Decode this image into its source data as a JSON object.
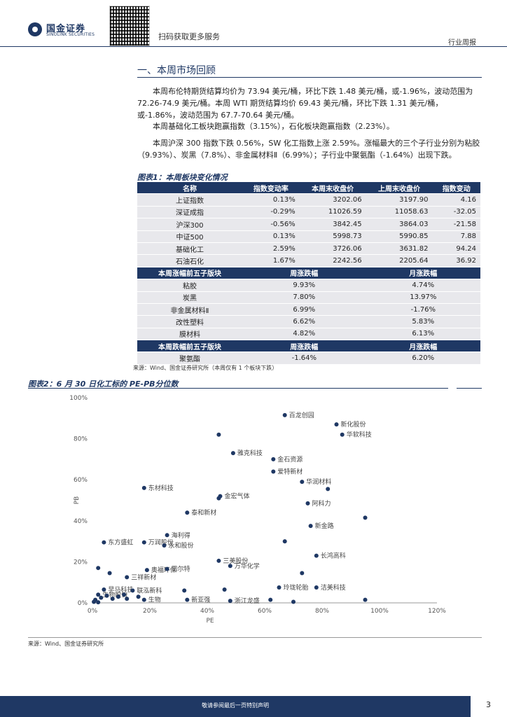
{
  "header": {
    "logo_cn": "国金证券",
    "logo_en": "SINOLINK SECURITIES",
    "qr_text": "扫码获取更多服务",
    "report_type": "行业周报"
  },
  "section": {
    "title": "一、本周市场回顾",
    "paragraphs": [
      "本周布伦特期货结算均价为 73.94 美元/桶，环比下跌 1.48 美元/桶，或-1.96%，波动范围为 72.26-74.9 美元/桶。本周 WTI 期货结算均价 69.43 美元/桶，环比下跌 1.31 美元/桶，或-1.86%，波动范围为 67.7-70.64 美元/桶。",
      "本周基础化工板块跑赢指数（3.15%），石化板块跑赢指数（2.23%）。",
      "本周沪深 300 指数下跌 0.56%，SW 化工指数上涨 2.59%。涨幅最大的三个子行业分别为粘胶（9.93%）、炭黑（7.8%）、非金属材料Ⅱ（6.99%）；子行业中聚氨酯（-1.64%）出现下跌。"
    ]
  },
  "table1": {
    "title": "图表1：本周板块变化情况",
    "header1": [
      "名称",
      "指数变动率",
      "本周末收盘价",
      "上周末收盘价",
      "指数变动"
    ],
    "rows1": [
      [
        "上证指数",
        "0.13%",
        "3202.06",
        "3197.90",
        "4.16"
      ],
      [
        "深证成指",
        "-0.29%",
        "11026.59",
        "11058.63",
        "-32.05"
      ],
      [
        "沪深300",
        "-0.56%",
        "3842.45",
        "3864.03",
        "-21.58"
      ],
      [
        "中证500",
        "0.13%",
        "5998.73",
        "5990.85",
        "7.88"
      ],
      [
        "基础化工",
        "2.59%",
        "3726.06",
        "3631.82",
        "94.24"
      ],
      [
        "石油石化",
        "1.67%",
        "2242.56",
        "2205.64",
        "36.92"
      ]
    ],
    "header2": [
      "本周涨幅前五子版块",
      "周涨跌幅",
      "月涨跌幅"
    ],
    "rows2": [
      [
        "粘胶",
        "9.93%",
        "4.74%"
      ],
      [
        "炭黑",
        "7.80%",
        "13.97%"
      ],
      [
        "非金属材料Ⅱ",
        "6.99%",
        "-1.76%"
      ],
      [
        "改性塑料",
        "6.62%",
        "5.83%"
      ],
      [
        "膜材料",
        "4.82%",
        "6.13%"
      ]
    ],
    "header3": [
      "本周跌幅前五子版块",
      "周涨跌幅",
      "月涨跌幅"
    ],
    "rows3": [
      [
        "聚氨酯",
        "-1.64%",
        "6.20%"
      ]
    ],
    "note": "来源：Wind、国金证券研究所（本周仅有 1 个板块下跌）"
  },
  "figure2": {
    "title": "图表2：6 月 30 日化工标的 PE-PB分位数",
    "source": "来源：Wind、国金证券研究所"
  },
  "chart_data": {
    "type": "scatter",
    "title": "图表2：6 月 30 日化工标的 PE-PB分位数",
    "xlabel": "PE",
    "ylabel": "PB",
    "xlim": [
      0,
      120
    ],
    "ylim": [
      0,
      100
    ],
    "x_ticks": [
      "0%",
      "20%",
      "40%",
      "60%",
      "80%",
      "100%",
      "120%"
    ],
    "y_ticks": [
      "0%",
      "20%",
      "40%",
      "60%",
      "80%",
      "100%"
    ],
    "color": "#1f3864",
    "points": [
      {
        "x": 67,
        "y": 91.5,
        "label": "百龙创园"
      },
      {
        "x": 85,
        "y": 87,
        "label": "新化股份"
      },
      {
        "x": 87,
        "y": 82,
        "label": "华软科技"
      },
      {
        "x": 44,
        "y": 82,
        "label": ""
      },
      {
        "x": 49,
        "y": 73,
        "label": "雅克科技"
      },
      {
        "x": 63,
        "y": 70,
        "label": "金石资源"
      },
      {
        "x": 63,
        "y": 64,
        "label": "爱特新材"
      },
      {
        "x": 73,
        "y": 59,
        "label": "华润材料"
      },
      {
        "x": 82,
        "y": 55.5,
        "label": ""
      },
      {
        "x": 18,
        "y": 56,
        "label": "东材科技"
      },
      {
        "x": 44.5,
        "y": 52,
        "label": "金宏气体"
      },
      {
        "x": 44,
        "y": 51,
        "label": ""
      },
      {
        "x": 75,
        "y": 48.5,
        "label": "阿科力"
      },
      {
        "x": 33,
        "y": 44,
        "label": "泰和新材"
      },
      {
        "x": 95,
        "y": 41.5,
        "label": ""
      },
      {
        "x": 76,
        "y": 37.5,
        "label": "新金路"
      },
      {
        "x": 26,
        "y": 33,
        "label": "海利得"
      },
      {
        "x": 4,
        "y": 29.5,
        "label": "东方盛虹"
      },
      {
        "x": 18,
        "y": 29.5,
        "label": "万润股份"
      },
      {
        "x": 25,
        "y": 28,
        "label": "永和股份"
      },
      {
        "x": 67,
        "y": 30,
        "label": ""
      },
      {
        "x": 78,
        "y": 23,
        "label": "长鸿高科"
      },
      {
        "x": 44,
        "y": 20.5,
        "label": "三美股份"
      },
      {
        "x": 48,
        "y": 18,
        "label": "万华化学"
      },
      {
        "x": 2,
        "y": 17,
        "label": ""
      },
      {
        "x": 19,
        "y": 16,
        "label": "奥福环保"
      },
      {
        "x": 26,
        "y": 16.5,
        "label": "司尔特"
      },
      {
        "x": 73,
        "y": 14.5,
        "label": ""
      },
      {
        "x": 12,
        "y": 12.5,
        "label": "三祥新材"
      },
      {
        "x": 6,
        "y": 14.5,
        "label": ""
      },
      {
        "x": 65,
        "y": 7.5,
        "label": "玲珑轮胎"
      },
      {
        "x": 78,
        "y": 7.5,
        "label": "洁美科技"
      },
      {
        "x": 4,
        "y": 6.5,
        "label": "早马科技"
      },
      {
        "x": 14,
        "y": 6,
        "label": "联泓新科"
      },
      {
        "x": 32,
        "y": 6,
        "label": ""
      },
      {
        "x": 46,
        "y": 6.5,
        "label": ""
      },
      {
        "x": 2,
        "y": 4,
        "label": "生物股份"
      },
      {
        "x": 16,
        "y": 3,
        "label": ""
      },
      {
        "x": 33,
        "y": 1.5,
        "label": "新亚强"
      },
      {
        "x": 48,
        "y": 1,
        "label": "浙江龙盛"
      },
      {
        "x": 62,
        "y": 1.5,
        "label": ""
      },
      {
        "x": 70,
        "y": 0.5,
        "label": ""
      },
      {
        "x": 95,
        "y": 1.5,
        "label": ""
      },
      {
        "x": 1,
        "y": 1.5,
        "label": ""
      },
      {
        "x": 3,
        "y": 2.5,
        "label": ""
      },
      {
        "x": 5,
        "y": 3.5,
        "label": ""
      },
      {
        "x": 7,
        "y": 2,
        "label": ""
      },
      {
        "x": 9,
        "y": 3,
        "label": ""
      },
      {
        "x": 11,
        "y": 4,
        "label": ""
      },
      {
        "x": 12,
        "y": 2,
        "label": ""
      },
      {
        "x": 0.5,
        "y": 0.5,
        "label": ""
      },
      {
        "x": 2,
        "y": 0.3,
        "label": ""
      },
      {
        "x": 18,
        "y": 1.5,
        "label": "生物"
      }
    ]
  },
  "footer": {
    "disclaimer": "敬请参阅最后一页特别声明",
    "page": "3"
  }
}
